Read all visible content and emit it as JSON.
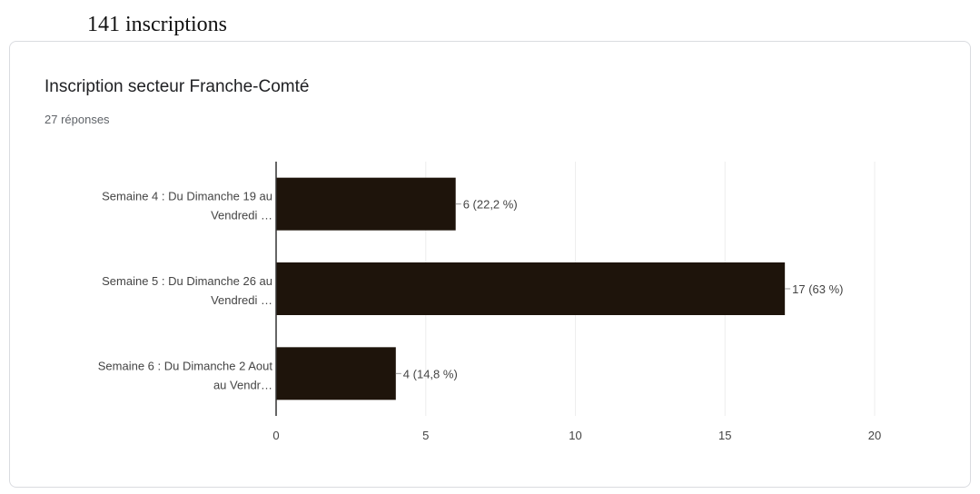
{
  "page": {
    "heading": "141 inscriptions"
  },
  "card": {
    "title": "Inscription secteur Franche-Comté",
    "subtitle": "27 réponses"
  },
  "colors": {
    "bar": "#1e140b",
    "grid": "#eeeeee",
    "axis": "#333333",
    "text": "#444444"
  },
  "chart_data": {
    "type": "bar",
    "orientation": "horizontal",
    "categories": [
      [
        "Semaine 4 : Du Dimanche 19 au",
        "Vendredi …"
      ],
      [
        "Semaine 5 : Du Dimanche 26 au",
        "Vendredi …"
      ],
      [
        "Semaine 6 : Du Dimanche 2 Aout",
        "au Vendr…"
      ]
    ],
    "values": [
      6,
      17,
      4
    ],
    "data_labels": [
      "6 (22,2 %)",
      "17 (63 %)",
      "4 (14,8 %)"
    ],
    "xlim": [
      0,
      20
    ],
    "xticks": [
      0,
      5,
      10,
      15,
      20
    ],
    "grid": true,
    "legend": "none"
  }
}
